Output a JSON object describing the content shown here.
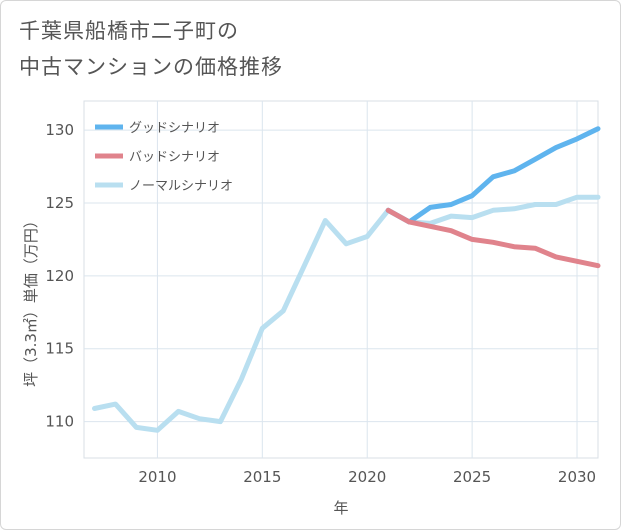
{
  "title_lines": [
    "千葉県船橋市二子町の",
    "中古マンションの価格推移"
  ],
  "chart_data": {
    "type": "line",
    "xlabel": "年",
    "ylabel": "坪（3.3㎡）単価（万円）",
    "xlim": [
      2006.5,
      2031
    ],
    "ylim": [
      107.5,
      132
    ],
    "xticks": [
      2010,
      2015,
      2020,
      2025,
      2030
    ],
    "yticks": [
      110,
      115,
      120,
      125,
      130
    ],
    "grid": true,
    "legend_position": "top-left",
    "series": [
      {
        "name": "グッドシナリオ",
        "color": "#5fb4ee",
        "x": [
          2021,
          2022,
          2023,
          2024,
          2025,
          2026,
          2027,
          2028,
          2029,
          2030,
          2031
        ],
        "values": [
          124.5,
          123.7,
          124.7,
          124.9,
          125.5,
          126.8,
          127.2,
          128.0,
          128.8,
          129.4,
          130.1
        ]
      },
      {
        "name": "バッドシナリオ",
        "color": "#e0838c",
        "x": [
          2021,
          2022,
          2023,
          2024,
          2025,
          2026,
          2027,
          2028,
          2029,
          2030,
          2031
        ],
        "values": [
          124.5,
          123.7,
          123.4,
          123.1,
          122.5,
          122.3,
          122.0,
          121.9,
          121.3,
          121.0,
          120.7
        ]
      },
      {
        "name": "ノーマルシナリオ",
        "color": "#b9dff0",
        "x": [
          2007,
          2008,
          2009,
          2010,
          2011,
          2012,
          2013,
          2014,
          2015,
          2016,
          2017,
          2018,
          2019,
          2020,
          2021,
          2022,
          2023,
          2024,
          2025,
          2026,
          2027,
          2028,
          2029,
          2030,
          2031
        ],
        "values": [
          110.9,
          111.2,
          109.6,
          109.4,
          110.7,
          110.2,
          110.0,
          112.9,
          116.4,
          117.6,
          120.7,
          123.8,
          122.2,
          122.7,
          124.5,
          123.7,
          123.6,
          124.1,
          124.0,
          124.5,
          124.6,
          124.9,
          124.9,
          125.4,
          125.4
        ]
      }
    ]
  }
}
